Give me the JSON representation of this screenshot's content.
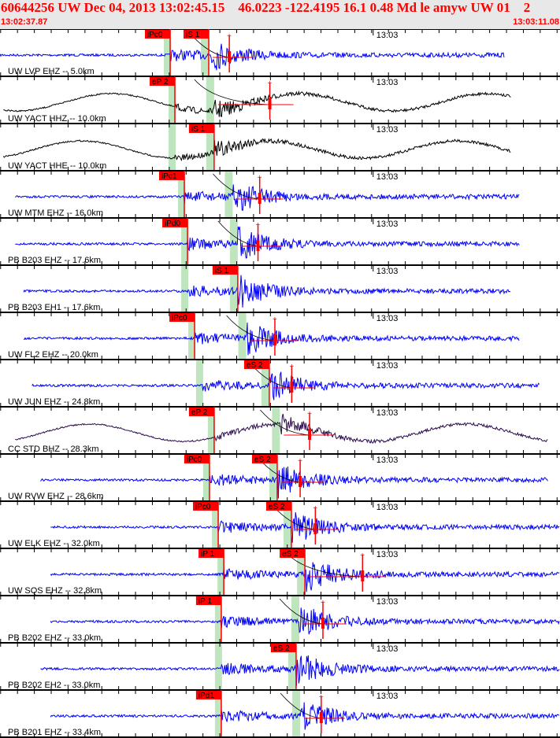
{
  "header": {
    "title": "60644256 UW Dec 04, 2013 13:02:45.15    46.0223 -122.4195 16.1 0.48 Md le amyw UW 01    2",
    "start_time": "13:02:37.87",
    "end_time": "13:03:11.08",
    "window_seconds": 33.21,
    "minute_label": "13:03",
    "minute_offset_s": 22.13
  },
  "colors": {
    "pick": "#ff0000",
    "band": "#bfe5bf",
    "blue": "#0000ff",
    "black": "#000000",
    "purple": "#2a0a4a"
  },
  "panels": [
    {
      "label": "UW LVP EHZ -- 5.0km",
      "color": "blue",
      "lp": false,
      "tr": [
        0,
        29.9
      ],
      "p": {
        "t": 10.09,
        "label": "iPc0"
      },
      "s": {
        "t": 12.38,
        "label": "iS 1"
      },
      "coda": 13.6
    },
    {
      "label": "UW YACT HHZ -- 10.0km",
      "color": "black",
      "lp": true,
      "tr": [
        0.2,
        30.3
      ],
      "p": {
        "t": 10.37,
        "label": "eP 2"
      },
      "s": {
        "t": 12.7,
        "label": ""
      },
      "coda": 16.0
    },
    {
      "label": "UW YACT HHE -- 10.0km",
      "color": "black",
      "lp": true,
      "tr": [
        0.2,
        30.3
      ],
      "p": {
        "t": 10.37,
        "label": ""
      },
      "s": {
        "t": 12.7,
        "label": "iS 1"
      },
      "coda": null
    },
    {
      "label": "UW MTM EHZ -- 16.0km",
      "color": "blue",
      "lp": false,
      "tr": [
        0.9,
        30.8
      ],
      "p": {
        "t": 10.93,
        "label": "iPc1"
      },
      "s": {
        "t": 13.8,
        "label": ""
      },
      "coda": 15.4
    },
    {
      "label": "PB B203 EHZ -- 17.6km",
      "color": "blue",
      "lp": false,
      "tr": [
        0.9,
        30.8
      ],
      "p": {
        "t": 11.12,
        "label": "iPd0"
      },
      "s": {
        "t": 14.1,
        "label": ""
      },
      "coda": 15.3
    },
    {
      "label": "PB B203 EH1 -- 17.6km",
      "color": "blue",
      "lp": false,
      "tr": [
        1.4,
        30.3
      ],
      "p": {
        "t": 11.12,
        "label": ""
      },
      "s": {
        "t": 14.1,
        "label": "iS 1"
      },
      "coda": null
    },
    {
      "label": "UW FL2 EHZ -- 20.0km",
      "color": "blue",
      "lp": false,
      "tr": [
        1.4,
        30.8
      ],
      "p": {
        "t": 11.54,
        "label": "iPc0"
      },
      "s": {
        "t": 14.6,
        "label": ""
      },
      "coda": 16.3
    },
    {
      "label": "UW JUN EHZ -- 24.8km",
      "color": "blue",
      "lp": false,
      "tr": [
        1.9,
        32.0
      ],
      "p": {
        "t": 12.0,
        "label": ""
      },
      "s": {
        "t": 15.97,
        "label": "eS 2"
      },
      "coda": 17.3
    },
    {
      "label": "CC STD BHZ -- 28.3km",
      "color": "purple",
      "lp": true,
      "tr": [
        0.9,
        32.5
      ],
      "p": {
        "t": 12.7,
        "label": "eP 2"
      },
      "s": {
        "t": 16.6,
        "label": ""
      },
      "coda": 18.36
    },
    {
      "label": "UW RVW EHZ -- 28.6km",
      "color": "blue",
      "lp": false,
      "tr": [
        2.4,
        32.5
      ],
      "p": {
        "t": 12.42,
        "label": "iPc0"
      },
      "s": {
        "t": 16.44,
        "label": "eS 2"
      },
      "coda": 17.8
    },
    {
      "label": "UW ELK EHZ -- 32.0km",
      "color": "blue",
      "lp": false,
      "tr": [
        3.0,
        33.2
      ],
      "p": {
        "t": 12.94,
        "label": "iPc0"
      },
      "s": {
        "t": 17.28,
        "label": "eS 2"
      },
      "coda": 18.7
    },
    {
      "label": "UW SQS EHZ -- 32.8km",
      "color": "blue",
      "lp": false,
      "tr": [
        3.0,
        33.2
      ],
      "p": {
        "t": 13.27,
        "label": "iP 1"
      },
      "s": {
        "t": 18.08,
        "label": "eS 2"
      },
      "coda": 21.5
    },
    {
      "label": "PB B202 EHZ -- 33.0km",
      "color": "blue",
      "lp": false,
      "tr": [
        3.0,
        33.2
      ],
      "p": {
        "t": 13.12,
        "label": "iP 1"
      },
      "s": {
        "t": 17.75,
        "label": ""
      },
      "coda": 19.15
    },
    {
      "label": "PB B202 EH2 -- 33.0km",
      "color": "blue",
      "lp": false,
      "tr": [
        2.4,
        33.2
      ],
      "p": {
        "t": 13.12,
        "label": ""
      },
      "s": {
        "t": 17.56,
        "label": "eS 2"
      },
      "coda": null
    },
    {
      "label": "PB B201 EHZ -- 33.4km",
      "color": "blue",
      "lp": false,
      "tr": [
        3.0,
        33.2
      ],
      "p": {
        "t": 13.12,
        "label": "iPd1"
      },
      "s": {
        "t": 17.8,
        "label": ""
      },
      "coda": 19.05
    }
  ]
}
